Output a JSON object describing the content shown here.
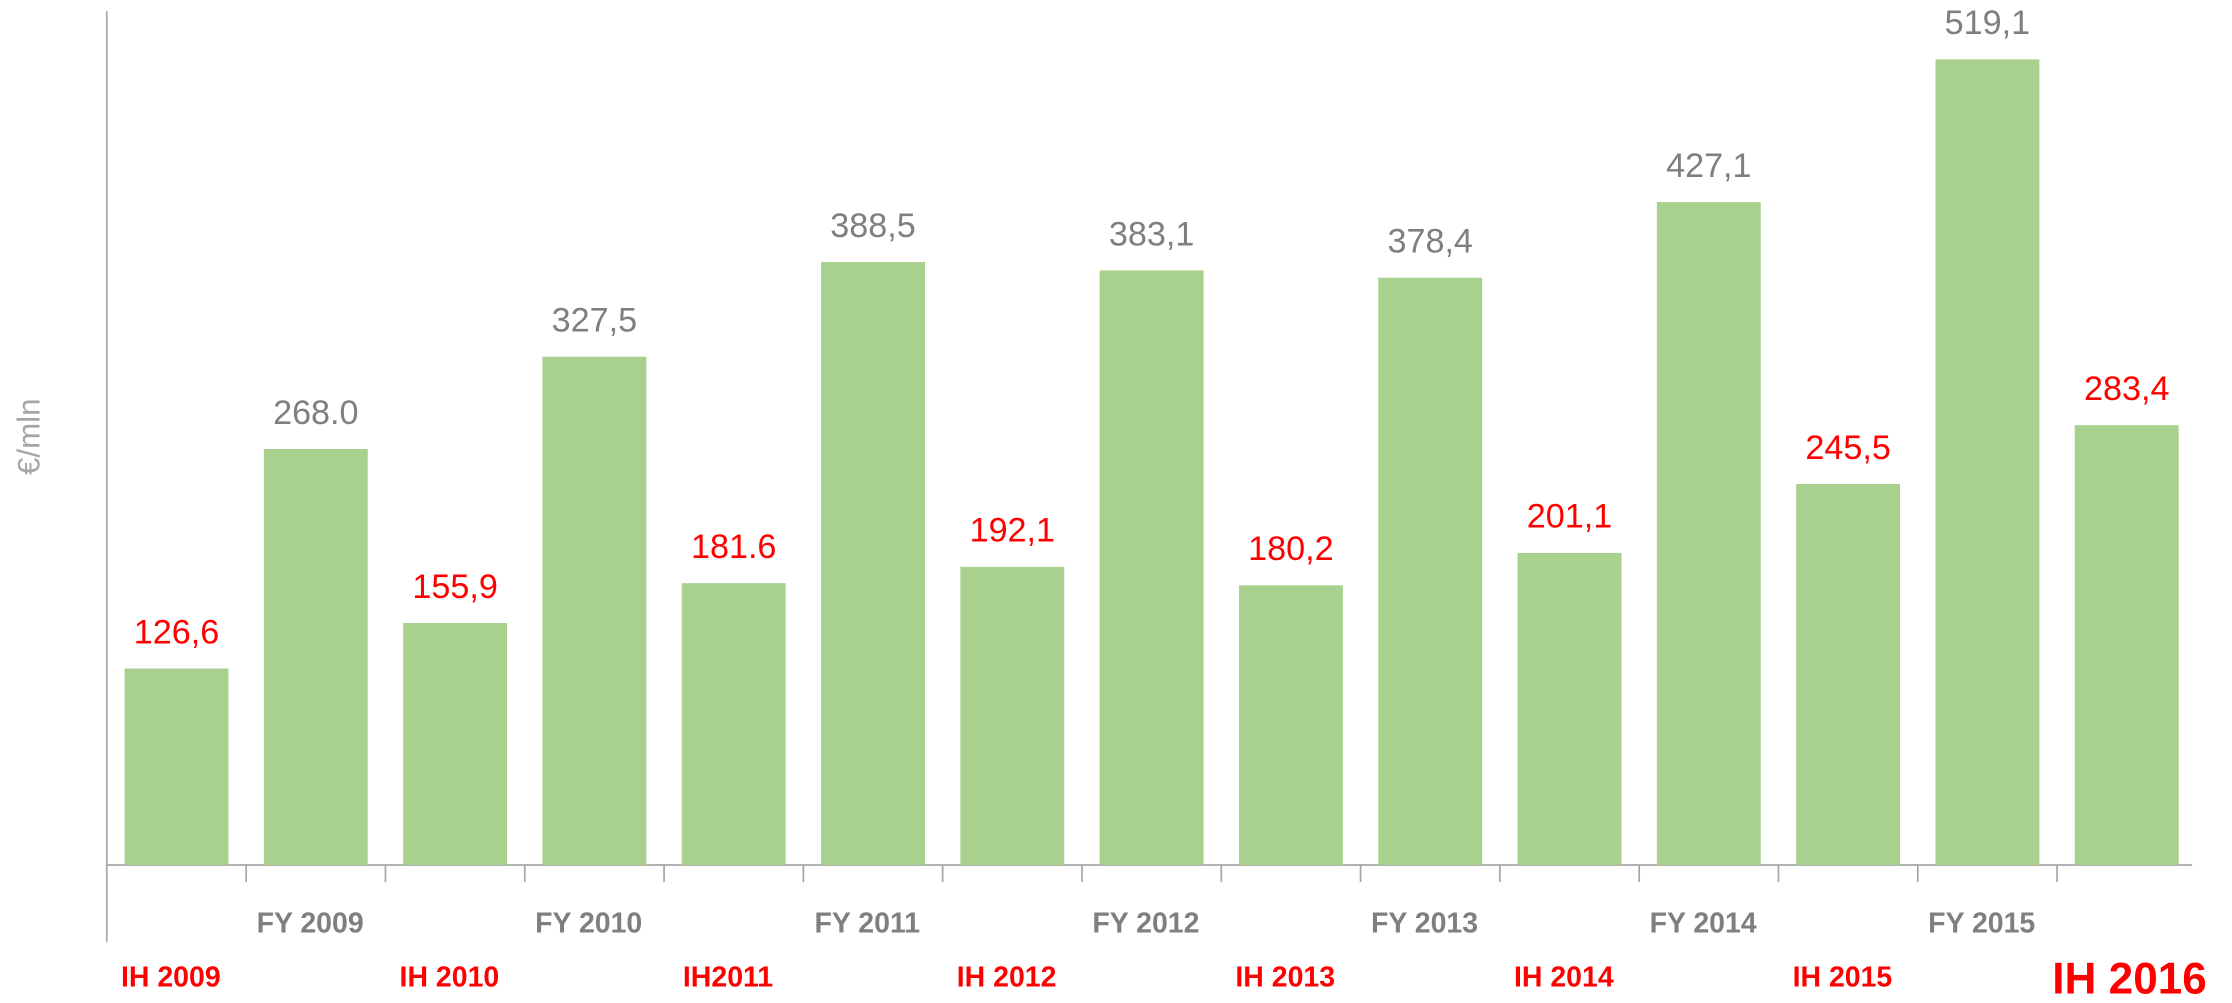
{
  "chart_data": {
    "type": "bar",
    "y_label": "€/mln",
    "categories": [
      "IH 2009",
      "FY 2009",
      "IH 2010",
      "FY 2010",
      "IH2011",
      "FY 2011",
      "IH 2012",
      "FY 2012",
      "IH 2013",
      "FY 2013",
      "IH 2014",
      "FY 2014",
      "IH 2015",
      "FY 2015",
      "IH 2016"
    ],
    "values": [
      126.6,
      268.0,
      155.9,
      327.5,
      181.6,
      388.5,
      192.1,
      383.1,
      180.2,
      378.4,
      201.1,
      427.1,
      245.5,
      519.1,
      283.4
    ],
    "value_labels": [
      "126,6",
      "268.0",
      "155,9",
      "327,5",
      "181.6",
      "388,5",
      "192,1",
      "383,1",
      "180,2",
      "378,4",
      "201,1",
      "427,1",
      "245,5",
      "519,1",
      "283,4"
    ],
    "color": "#a9d18e",
    "category_colors": [
      "#ff0000",
      "#7f7f7f",
      "#ff0000",
      "#7f7f7f",
      "#ff0000",
      "#7f7f7f",
      "#ff0000",
      "#7f7f7f",
      "#ff0000",
      "#7f7f7f",
      "#ff0000",
      "#7f7f7f",
      "#ff0000",
      "#7f7f7f",
      "#ff0000"
    ],
    "ylim": [
      0,
      550
    ]
  }
}
